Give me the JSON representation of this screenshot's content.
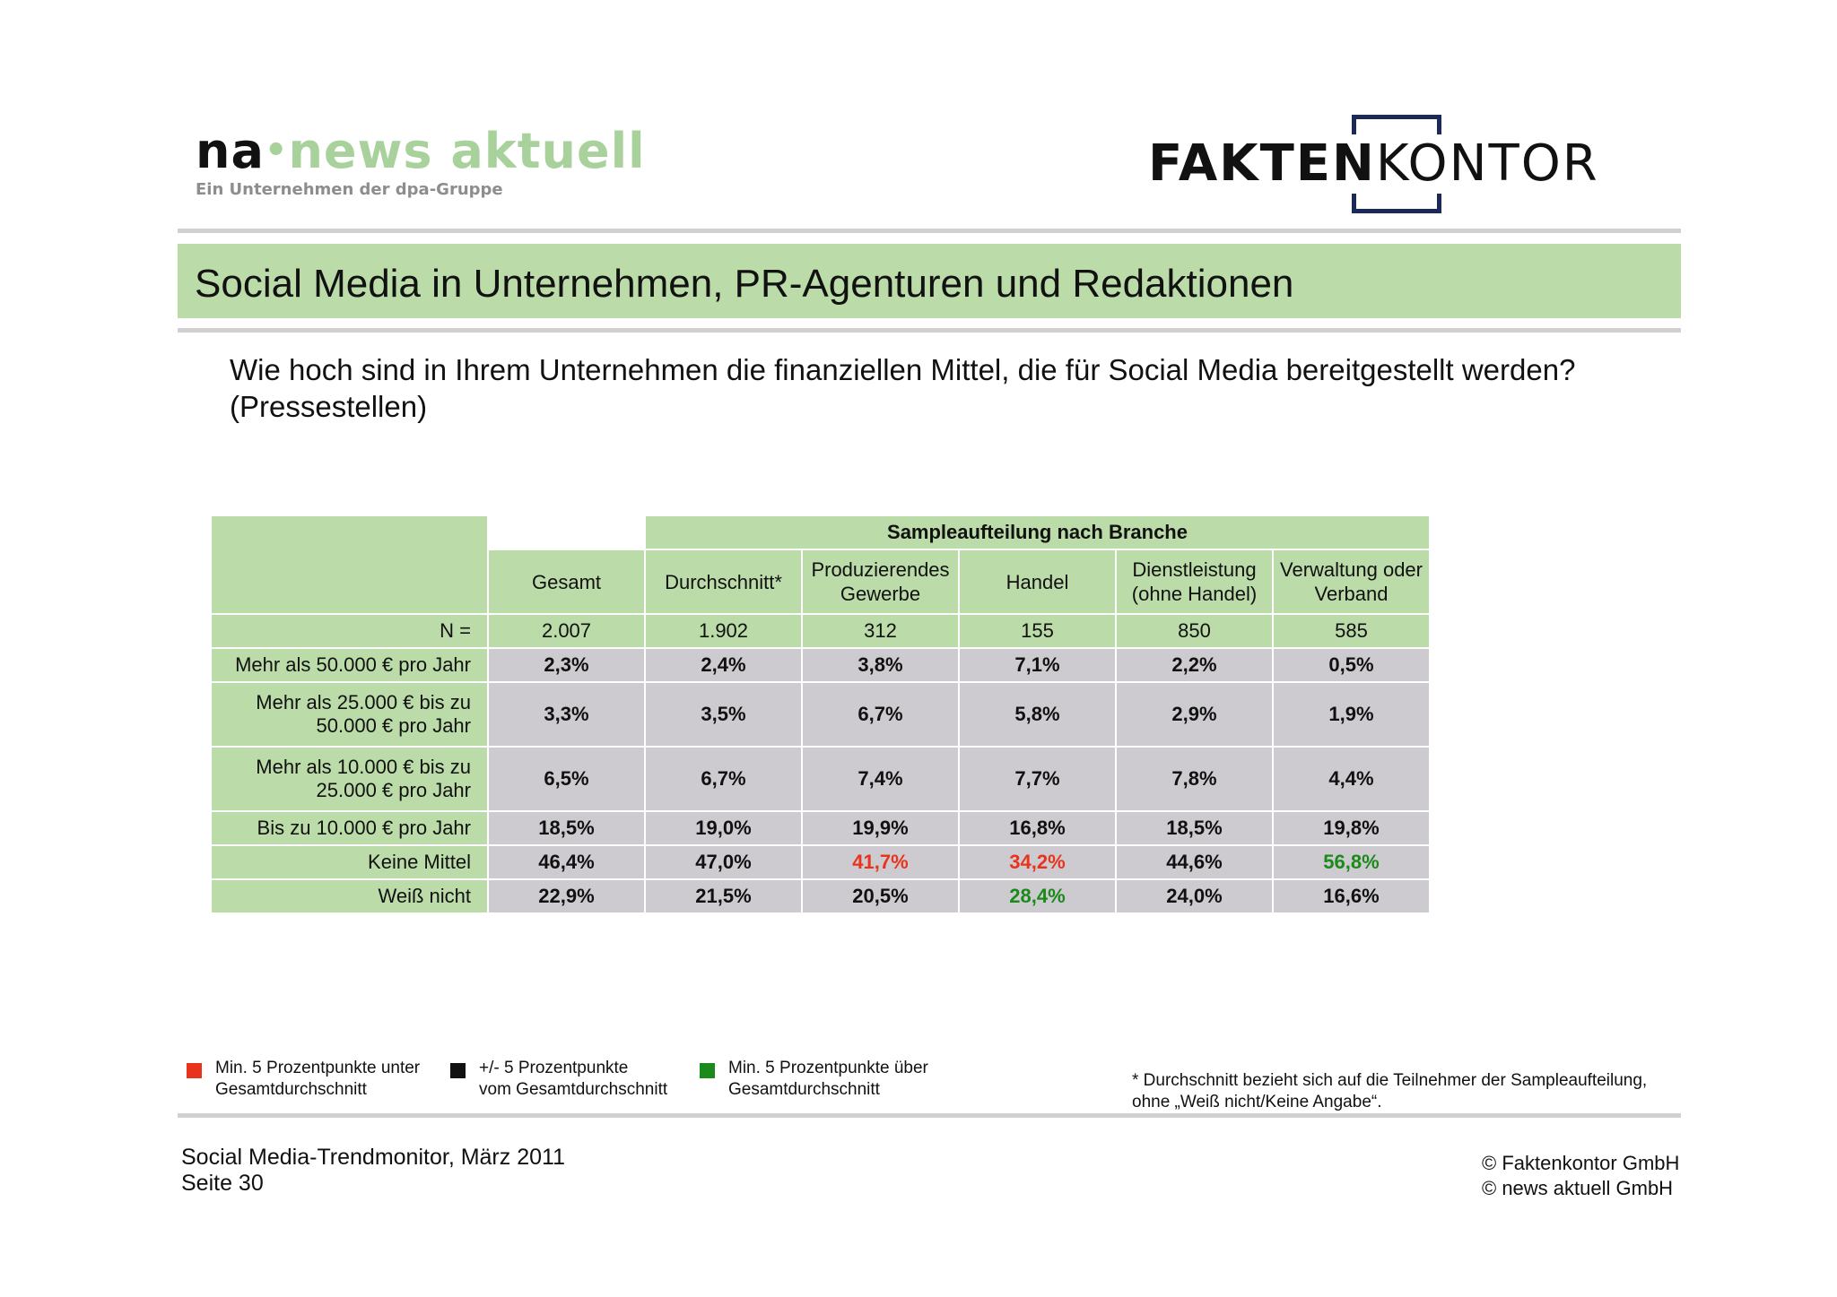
{
  "logos": {
    "na": {
      "na": "na",
      "dot": "•",
      "news": "news aktuell",
      "tagline": "Ein Unternehmen der dpa-Gruppe"
    },
    "faktenkontor": {
      "bold": "FAKTEN",
      "light": "KONTOR"
    }
  },
  "title": "Social Media in Unternehmen, PR-Agenturen und Redaktionen",
  "question": {
    "line1": "Wie hoch sind in Ihrem Unternehmen die finanziellen Mittel, die für Social Media bereitgestellt werden?",
    "line2": "(Pressestellen)"
  },
  "table": {
    "super_header": "Sampleaufteilung nach Branche",
    "columns": [
      [
        "Gesamt"
      ],
      [
        "Durchschnitt*"
      ],
      [
        "Produzierendes",
        "Gewerbe"
      ],
      [
        "Handel"
      ],
      [
        "Dienstleistung",
        "(ohne Handel)"
      ],
      [
        "Verwaltung oder",
        "Verband"
      ]
    ],
    "n_row": {
      "label": "N =",
      "values": [
        "2.007",
        "1.902",
        "312",
        "155",
        "850",
        "585"
      ]
    },
    "rows": [
      {
        "label": [
          "Mehr als 50.000 € pro Jahr"
        ],
        "values": [
          "2,3%",
          "2,4%",
          "3,8%",
          "7,1%",
          "2,2%",
          "0,5%"
        ]
      },
      {
        "label": [
          "Mehr als 25.000 € bis zu",
          "50.000 € pro Jahr"
        ],
        "values": [
          "3,3%",
          "3,5%",
          "6,7%",
          "5,8%",
          "2,9%",
          "1,9%"
        ]
      },
      {
        "label": [
          "Mehr als 10.000 € bis zu",
          "25.000 € pro Jahr"
        ],
        "values": [
          "6,5%",
          "6,7%",
          "7,4%",
          "7,7%",
          "7,8%",
          "4,4%"
        ]
      },
      {
        "label": [
          "Bis zu 10.000 € pro Jahr"
        ],
        "values": [
          "18,5%",
          "19,0%",
          "19,9%",
          "16,8%",
          "18,5%",
          "19,8%"
        ]
      },
      {
        "label": [
          "Keine Mittel"
        ],
        "values": [
          "46,4%",
          "47,0%",
          "41,7%",
          "34,2%",
          "44,6%",
          "56,8%"
        ]
      },
      {
        "label": [
          "Weiß nicht"
        ],
        "values": [
          "22,9%",
          "21,5%",
          "20,5%",
          "28,4%",
          "24,0%",
          "16,6%"
        ]
      }
    ],
    "colors": {
      "header_bg": "#bbdca8",
      "cell_bg": "#cdcbcf",
      "below": "#e8341c",
      "above": "#1a8a1a",
      "neutral": "#111111"
    }
  },
  "legend": {
    "below": {
      "line1": "Min. 5 Prozentpunkte unter",
      "line2": "Gesamtdurchschnitt",
      "color": "#e8341c"
    },
    "neutral": {
      "line1": "+/- 5 Prozentpunkte",
      "line2": "vom Gesamtdurchschnitt",
      "color": "#111111"
    },
    "above": {
      "line1": "Min. 5 Prozentpunkte über",
      "line2": "Gesamtdurchschnitt",
      "color": "#1a8a1a"
    }
  },
  "footnote": {
    "line1": "* Durchschnitt bezieht sich auf die Teilnehmer der Sampleaufteilung,",
    "line2": "ohne „Weiß nicht/Keine Angabe“."
  },
  "footer": {
    "left_line1": "Social Media-Trendmonitor, März 2011",
    "left_line2": "Seite 30",
    "right_line1": "© Faktenkontor GmbH",
    "right_line2": "© news aktuell GmbH"
  }
}
